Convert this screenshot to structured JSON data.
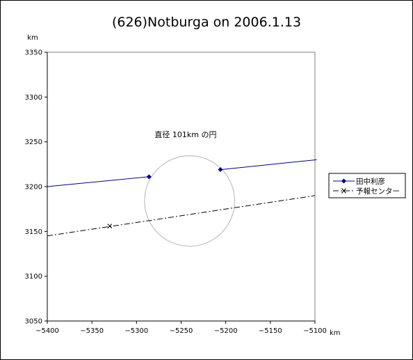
{
  "chart_data": {
    "type": "line",
    "title": "(626)Notburga on 2006.1.13",
    "xunit": "km",
    "yunit": "km",
    "xlim": [
      -5400,
      -5100
    ],
    "ylim": [
      3050,
      3350
    ],
    "xticks": [
      -5400,
      -5350,
      -5300,
      -5250,
      -5200,
      -5150,
      -5100
    ],
    "yticks": [
      3050,
      3100,
      3150,
      3200,
      3250,
      3300,
      3350
    ],
    "xtick_labels": [
      "−5400",
      "−5350",
      "−5300",
      "−5250",
      "−5200",
      "−5150",
      "−5100"
    ],
    "ytick_labels": [
      "3050",
      "3100",
      "3150",
      "3200",
      "3250",
      "3300",
      "3350"
    ],
    "grid": false,
    "legend_position": "right",
    "annotation": {
      "text": "直径 101km の円",
      "x": -5245,
      "y": 3255
    },
    "circle": {
      "cx": -5240.5,
      "cy": 3184,
      "r": 50.5,
      "color": "#c0c0c0"
    },
    "series": [
      {
        "name": "田中利彦",
        "color": "#000080",
        "style": "solid",
        "marker": "diamond",
        "segments": [
          {
            "x": [
              -5400,
              -5286
            ],
            "y": [
              3200,
              3211
            ]
          },
          {
            "x": [
              -5206,
              -5098
            ],
            "y": [
              3219,
              3230
            ]
          }
        ],
        "points": [
          {
            "x": -5286,
            "y": 3211
          },
          {
            "x": -5206,
            "y": 3219
          }
        ]
      },
      {
        "name": "予報センター",
        "color": "#000000",
        "style": "dashdot",
        "marker": "x",
        "segments": [
          {
            "x": [
              -5400,
              -5100
            ],
            "y": [
              3145,
              3190
            ]
          }
        ],
        "points": [
          {
            "x": -5330,
            "y": 3156
          }
        ]
      }
    ]
  }
}
